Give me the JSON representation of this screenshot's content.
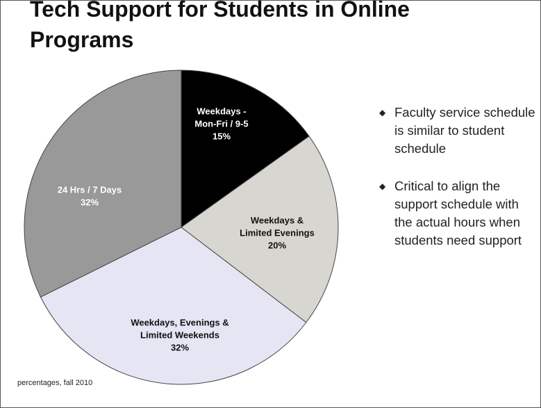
{
  "chart_data": {
    "type": "pie",
    "title": "Tech Support for Students in Online Programs",
    "categories": [
      [
        "Weekdays -",
        "Mon-Fri / 9-5"
      ],
      [
        "Weekdays &",
        "Limited Evenings"
      ],
      [
        "Weekdays, Evenings &",
        "Limited Weekends"
      ],
      [
        "24 Hrs / 7 Days"
      ]
    ],
    "values": [
      15,
      20,
      32,
      32
    ],
    "value_labels": [
      "15%",
      "20%",
      "32%",
      "32%"
    ],
    "colors": [
      "#000000",
      "#d8d6d1",
      "#e5e5f4",
      "#999999"
    ],
    "label_colors": [
      "#ffffff",
      "#111111",
      "#111111",
      "#ffffff"
    ],
    "note": "percentages, fall 2010"
  },
  "bullets": [
    "Faculty service schedule is similar to student schedule",
    "Critical to align the support schedule with the actual hours when students need support"
  ]
}
